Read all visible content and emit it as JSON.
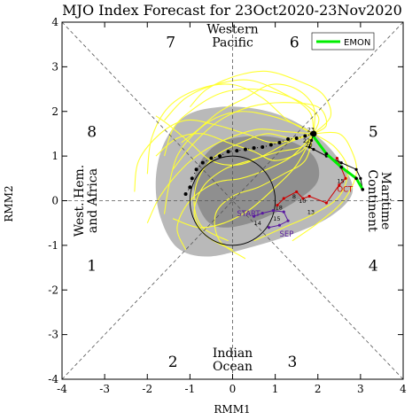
{
  "chart_data": {
    "type": "scatter",
    "title": "MJO Index Forecast for 23Oct2020-23Nov2020",
    "xlabel": "RMM1",
    "ylabel": "RMM2",
    "xlim": [
      -4,
      4
    ],
    "ylim": [
      -4,
      4
    ],
    "xticks": [
      -4,
      -3,
      -2,
      -1,
      0,
      1,
      2,
      3,
      4
    ],
    "yticks": [
      -4,
      -3,
      -2,
      -1,
      0,
      1,
      2,
      3,
      4
    ],
    "phase_numbers": [
      {
        "label": "1",
        "x": -3.3,
        "y": -1.45
      },
      {
        "label": "2",
        "x": -1.4,
        "y": -3.6
      },
      {
        "label": "3",
        "x": 1.4,
        "y": -3.6
      },
      {
        "label": "4",
        "x": 3.3,
        "y": -1.45
      },
      {
        "label": "5",
        "x": 3.3,
        "y": 1.55
      },
      {
        "label": "6",
        "x": 1.45,
        "y": 3.55
      },
      {
        "label": "7",
        "x": -1.45,
        "y": 3.55
      },
      {
        "label": "8",
        "x": -3.3,
        "y": 1.55
      }
    ],
    "regions": [
      {
        "lines": [
          "Western",
          "Pacific"
        ],
        "x": 0,
        "y": 3.7
      },
      {
        "lines": [
          "Indian",
          "Ocean"
        ],
        "x": 0,
        "y": -3.55
      },
      {
        "lines": [
          "West. Hem.",
          "and Africa"
        ],
        "x": -3.45,
        "y": 0,
        "rotate": -90
      },
      {
        "lines": [
          "Maritime",
          "Continent"
        ],
        "x": 3.45,
        "y": 0,
        "rotate": 90
      }
    ],
    "legend": {
      "label": "EMON",
      "color": "#00ee00",
      "position": "top-right"
    },
    "shading": {
      "outer": [
        [
          -1.8,
          0.5
        ],
        [
          -1.6,
          1.3
        ],
        [
          -1.1,
          1.9
        ],
        [
          -0.3,
          2.1
        ],
        [
          0.6,
          2.05
        ],
        [
          1.4,
          1.8
        ],
        [
          2.1,
          1.35
        ],
        [
          2.65,
          0.7
        ],
        [
          2.8,
          0.15
        ],
        [
          2.3,
          -0.35
        ],
        [
          1.4,
          -0.75
        ],
        [
          0.4,
          -1.05
        ],
        [
          -0.6,
          -1.25
        ],
        [
          -1.3,
          -1.05
        ],
        [
          -1.7,
          -0.35
        ]
      ],
      "inner": [
        [
          -0.9,
          0.2
        ],
        [
          -0.8,
          0.8
        ],
        [
          -0.3,
          1.3
        ],
        [
          0.5,
          1.45
        ],
        [
          1.3,
          1.35
        ],
        [
          1.9,
          1.0
        ],
        [
          2.0,
          0.45
        ],
        [
          1.5,
          0.0
        ],
        [
          0.7,
          -0.4
        ],
        [
          -0.1,
          -0.6
        ],
        [
          -0.6,
          -0.45
        ]
      ]
    },
    "series": [
      {
        "name": "observed_sep",
        "color": "#5a1aa0",
        "month_label": {
          "text": "SEP",
          "x": 1.1,
          "y": -0.8
        },
        "points": [
          [
            0.5,
            -0.35
          ],
          [
            0.7,
            -0.28
          ],
          [
            0.95,
            -0.22
          ],
          [
            1.2,
            -0.25
          ],
          [
            1.3,
            -0.45
          ],
          [
            1.1,
            -0.55
          ],
          [
            0.85,
            -0.6
          ]
        ],
        "day_labels": [
          {
            "text": "14",
            "x": 0.5,
            "y": -0.55
          },
          {
            "text": "15",
            "x": 0.95,
            "y": -0.45
          },
          {
            "text": "18",
            "x": 1.0,
            "y": -0.2
          }
        ]
      },
      {
        "name": "observed_oct",
        "color": "#cc0000",
        "month_label": {
          "text": "OCT",
          "x": 2.45,
          "y": 0.2
        },
        "points": [
          [
            1.05,
            -0.1
          ],
          [
            1.2,
            0.05
          ],
          [
            1.5,
            0.2
          ],
          [
            1.65,
            0.05
          ],
          [
            1.8,
            0.1
          ],
          [
            2.2,
            -0.05
          ],
          [
            2.5,
            0.35
          ],
          [
            2.65,
            0.5
          ],
          [
            2.45,
            0.95
          ]
        ],
        "day_labels": [
          {
            "text": "15",
            "x": 2.45,
            "y": 0.4
          },
          {
            "text": "13",
            "x": 1.75,
            "y": -0.3
          },
          {
            "text": "10",
            "x": 1.55,
            "y": -0.05
          },
          {
            "text": "8",
            "x": 1.4,
            "y": 0.05
          }
        ]
      },
      {
        "name": "start_to_observed",
        "color": "#000000",
        "start_label": {
          "text": "START",
          "x": 0.1,
          "y": -0.35
        },
        "points": [
          [
            1.9,
            1.5
          ],
          [
            1.85,
            1.35
          ],
          [
            1.8,
            1.2
          ],
          [
            1.9,
            1.15
          ],
          [
            2.2,
            1.0
          ],
          [
            2.55,
            0.85
          ],
          [
            2.9,
            0.7
          ],
          [
            3.0,
            0.5
          ],
          [
            3.05,
            0.25
          ]
        ],
        "day_labels": [
          {
            "text": "23",
            "x": 1.75,
            "y": 1.55
          },
          {
            "text": "22",
            "x": 1.65,
            "y": 1.3
          },
          {
            "text": "20",
            "x": 1.7,
            "y": 1.2
          }
        ]
      },
      {
        "name": "forecast_mean",
        "color": "#000000",
        "points": [
          [
            1.9,
            1.5
          ],
          [
            1.7,
            1.45
          ],
          [
            1.5,
            1.4
          ],
          [
            1.3,
            1.38
          ],
          [
            1.1,
            1.3
          ],
          [
            0.9,
            1.25
          ],
          [
            0.7,
            1.2
          ],
          [
            0.5,
            1.18
          ],
          [
            0.3,
            1.15
          ],
          [
            0.1,
            1.12
          ],
          [
            -0.1,
            1.1
          ],
          [
            -0.3,
            1.0
          ],
          [
            -0.5,
            0.95
          ],
          [
            -0.7,
            0.85
          ],
          [
            -0.85,
            0.7
          ],
          [
            -0.95,
            0.5
          ],
          [
            -1.0,
            0.3
          ],
          [
            -1.1,
            0.15
          ]
        ]
      },
      {
        "name": "EMON",
        "color": "#00ee00",
        "points": [
          [
            1.85,
            1.5
          ],
          [
            2.2,
            1.05
          ],
          [
            2.55,
            0.75
          ],
          [
            2.9,
            0.5
          ],
          [
            3.05,
            0.25
          ]
        ]
      }
    ],
    "ensemble": {
      "color": "#ffff33",
      "members": [
        [
          [
            1.9,
            1.5
          ],
          [
            1.5,
            1.7
          ],
          [
            0.9,
            1.9
          ],
          [
            0.2,
            2.0
          ],
          [
            -0.4,
            1.85
          ],
          [
            -0.9,
            1.5
          ],
          [
            -1.3,
            1.0
          ],
          [
            -1.5,
            0.3
          ],
          [
            -1.6,
            -0.3
          ]
        ],
        [
          [
            1.9,
            1.5
          ],
          [
            1.6,
            1.2
          ],
          [
            1.1,
            1.1
          ],
          [
            0.4,
            0.9
          ],
          [
            -0.2,
            0.7
          ],
          [
            -0.7,
            0.3
          ],
          [
            -0.9,
            -0.3
          ],
          [
            -0.6,
            -0.8
          ],
          [
            0.0,
            -1.1
          ]
        ],
        [
          [
            1.9,
            1.5
          ],
          [
            2.3,
            1.9
          ],
          [
            2.1,
            2.4
          ],
          [
            1.5,
            2.7
          ],
          [
            0.8,
            2.9
          ],
          [
            0.1,
            2.8
          ],
          [
            -0.6,
            2.5
          ],
          [
            -1.0,
            2.1
          ]
        ],
        [
          [
            1.9,
            1.5
          ],
          [
            1.3,
            1.8
          ],
          [
            0.7,
            2.3
          ],
          [
            0.0,
            2.6
          ],
          [
            -0.8,
            2.5
          ],
          [
            -1.5,
            2.1
          ],
          [
            -1.9,
            1.4
          ],
          [
            -2.0,
            0.6
          ]
        ],
        [
          [
            1.9,
            1.5
          ],
          [
            1.7,
            0.9
          ],
          [
            1.2,
            0.6
          ],
          [
            0.6,
            0.3
          ],
          [
            0.0,
            0.1
          ],
          [
            -0.4,
            -0.3
          ],
          [
            -0.3,
            -0.9
          ],
          [
            0.3,
            -1.3
          ]
        ],
        [
          [
            1.9,
            1.5
          ],
          [
            1.2,
            1.55
          ],
          [
            0.6,
            1.6
          ],
          [
            -0.1,
            1.4
          ],
          [
            -0.7,
            1.1
          ],
          [
            -1.2,
            0.7
          ],
          [
            -1.7,
            0.1
          ],
          [
            -2.0,
            -0.5
          ]
        ],
        [
          [
            1.9,
            1.5
          ],
          [
            1.9,
            2.1
          ],
          [
            1.5,
            2.5
          ],
          [
            0.9,
            2.6
          ],
          [
            0.3,
            2.3
          ],
          [
            -0.3,
            2.0
          ],
          [
            -0.8,
            1.6
          ],
          [
            -1.2,
            1.3
          ]
        ],
        [
          [
            1.9,
            1.5
          ],
          [
            2.4,
            1.2
          ],
          [
            2.7,
            0.7
          ],
          [
            2.5,
            0.1
          ],
          [
            1.9,
            -0.3
          ],
          [
            1.2,
            -0.6
          ],
          [
            0.5,
            -0.9
          ]
        ],
        [
          [
            1.9,
            1.5
          ],
          [
            1.4,
            1.0
          ],
          [
            0.8,
            0.7
          ],
          [
            0.2,
            0.5
          ],
          [
            -0.4,
            0.4
          ],
          [
            -1.0,
            0.0
          ],
          [
            -1.3,
            -0.6
          ],
          [
            -1.1,
            -1.1
          ]
        ],
        [
          [
            1.9,
            1.5
          ],
          [
            2.0,
            1.9
          ],
          [
            1.4,
            2.3
          ],
          [
            0.5,
            2.5
          ],
          [
            -0.3,
            2.4
          ],
          [
            -1.0,
            2.0
          ],
          [
            -1.4,
            1.6
          ],
          [
            -1.6,
            1.0
          ]
        ],
        [
          [
            1.9,
            1.5
          ],
          [
            1.0,
            1.3
          ],
          [
            0.3,
            1.5
          ],
          [
            -0.4,
            1.7
          ],
          [
            -1.1,
            1.8
          ],
          [
            -1.7,
            1.5
          ],
          [
            -2.2,
            0.9
          ],
          [
            -2.3,
            0.2
          ]
        ],
        [
          [
            1.9,
            1.5
          ],
          [
            1.5,
            0.8
          ],
          [
            1.0,
            0.3
          ],
          [
            0.4,
            -0.2
          ],
          [
            -0.2,
            -0.5
          ],
          [
            -0.8,
            -0.6
          ],
          [
            -1.4,
            -0.4
          ]
        ],
        [
          [
            1.9,
            1.5
          ],
          [
            2.2,
            1.7
          ],
          [
            2.0,
            2.1
          ],
          [
            1.2,
            2.2
          ],
          [
            0.4,
            2.1
          ],
          [
            -0.3,
            1.8
          ],
          [
            -0.9,
            1.3
          ],
          [
            -1.4,
            0.7
          ]
        ],
        [
          [
            1.9,
            1.5
          ],
          [
            1.3,
            1.3
          ],
          [
            0.7,
            1.0
          ],
          [
            0.1,
            0.8
          ],
          [
            -0.5,
            0.9
          ],
          [
            -1.0,
            1.3
          ],
          [
            -1.5,
            1.7
          ],
          [
            -1.8,
            1.9
          ]
        ],
        [
          [
            1.9,
            1.5
          ],
          [
            1.8,
            2.0
          ],
          [
            1.2,
            2.4
          ],
          [
            0.4,
            2.7
          ],
          [
            -0.4,
            2.6
          ],
          [
            -1.1,
            2.3
          ],
          [
            -1.6,
            1.8
          ]
        ],
        [
          [
            1.9,
            1.5
          ],
          [
            1.4,
            1.4
          ],
          [
            0.8,
            1.5
          ],
          [
            0.2,
            1.3
          ],
          [
            -0.4,
            1.0
          ],
          [
            -0.8,
            0.5
          ],
          [
            -0.9,
            -0.1
          ],
          [
            -0.7,
            -0.6
          ],
          [
            -0.1,
            -0.9
          ]
        ],
        [
          [
            1.9,
            1.5
          ],
          [
            2.5,
            1.5
          ],
          [
            2.8,
            1.1
          ],
          [
            2.9,
            0.6
          ],
          [
            2.6,
            0.0
          ],
          [
            2.0,
            -0.5
          ],
          [
            1.4,
            -0.9
          ]
        ],
        [
          [
            1.9,
            1.5
          ],
          [
            1.6,
            1.1
          ],
          [
            1.0,
            0.9
          ],
          [
            0.5,
            1.1
          ],
          [
            -0.1,
            1.3
          ],
          [
            -0.7,
            1.5
          ],
          [
            -1.3,
            1.4
          ],
          [
            -1.8,
            1.0
          ]
        ]
      ]
    }
  }
}
